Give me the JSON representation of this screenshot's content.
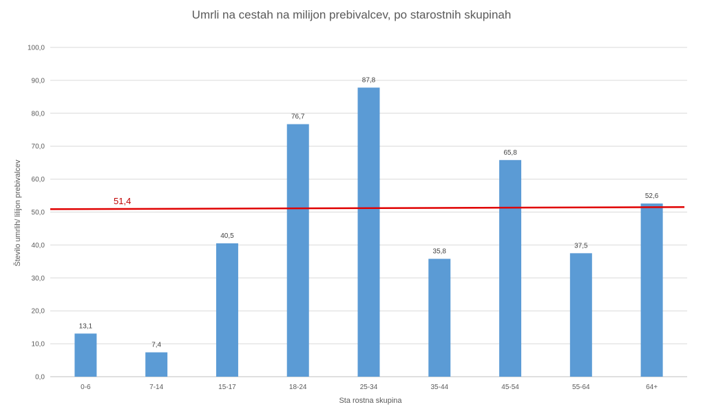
{
  "chart_data": {
    "type": "bar",
    "title": "Umrli na cestah na milijon prebivalcev, po starostnih skupinah",
    "xlabel": "Sta rostna skupina",
    "ylabel": "Število umrlih/ lilijon prebivalcev",
    "categories": [
      "0-6",
      "7-14",
      "15-17",
      "18-24",
      "25-34",
      "35-44",
      "45-54",
      "55-64",
      "64+"
    ],
    "values": [
      13.1,
      7.4,
      40.5,
      76.7,
      87.8,
      35.8,
      65.8,
      37.5,
      52.6
    ],
    "data_labels": [
      "13,1",
      "7,4",
      "40,5",
      "76,7",
      "87,8",
      "35,8",
      "65,8",
      "37,5",
      "52,6"
    ],
    "ylim": [
      0,
      100
    ],
    "yticks": [
      0,
      10,
      20,
      30,
      40,
      50,
      60,
      70,
      80,
      90,
      100
    ],
    "ytick_labels": [
      "0,0",
      "10,0",
      "20,0",
      "30,0",
      "40,0",
      "50,0",
      "60,0",
      "70,0",
      "80,0",
      "90,0",
      "100,0"
    ],
    "grid": true,
    "bar_color": "#5b9bd5",
    "reference_line": {
      "value": 51.4,
      "label": "51,4",
      "color": "#e00000"
    }
  }
}
